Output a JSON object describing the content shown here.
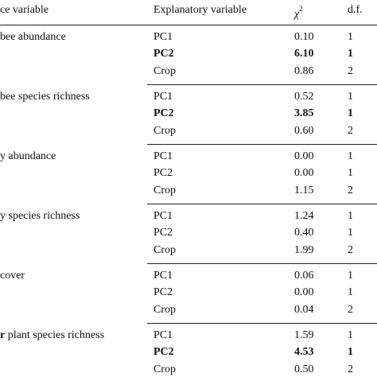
{
  "table": {
    "header": {
      "response": "ce variable",
      "explanatory": "Explanatory variable",
      "chi": "χ",
      "chi_sup": "2",
      "df": "d.f."
    },
    "groups": [
      {
        "response": [
          {
            "text": "bee abundance"
          }
        ],
        "rows": [
          {
            "variable": "PC1",
            "chi2": "0.10",
            "df": "1",
            "bold": false
          },
          {
            "variable": "PC2",
            "chi2": "6.10",
            "df": "1",
            "bold": true
          },
          {
            "variable": "Crop",
            "chi2": "0.86",
            "df": "2",
            "bold": false
          }
        ]
      },
      {
        "response": [
          {
            "text": "bee species richness"
          }
        ],
        "rows": [
          {
            "variable": "PC1",
            "chi2": "0.52",
            "df": "1",
            "bold": false
          },
          {
            "variable": "PC2",
            "chi2": "3.85",
            "df": "1",
            "bold": true
          },
          {
            "variable": "Crop",
            "chi2": "0.60",
            "df": "2",
            "bold": false
          }
        ]
      },
      {
        "response": [
          {
            "text": "y abundance"
          }
        ],
        "rows": [
          {
            "variable": "PC1",
            "chi2": "0.00",
            "df": "1",
            "bold": false
          },
          {
            "variable": "PC2",
            "chi2": "0.00",
            "df": "1",
            "bold": false
          },
          {
            "variable": "Crop",
            "chi2": "1.15",
            "df": "2",
            "bold": false
          }
        ]
      },
      {
        "response": [
          {
            "text": "y species richness"
          }
        ],
        "rows": [
          {
            "variable": "PC1",
            "chi2": "1.24",
            "df": "1",
            "bold": false
          },
          {
            "variable": "PC2",
            "chi2": "0.40",
            "df": "1",
            "bold": false
          },
          {
            "variable": "Crop",
            "chi2": "1.99",
            "df": "2",
            "bold": false
          }
        ]
      },
      {
        "response": [
          {
            "text": "cover"
          }
        ],
        "rows": [
          {
            "variable": "PC1",
            "chi2": "0.06",
            "df": "1",
            "bold": false
          },
          {
            "variable": "PC2",
            "chi2": "0.00",
            "df": "1",
            "bold": false
          },
          {
            "variable": "Crop",
            "chi2": "0.04",
            "df": "2",
            "bold": false
          }
        ]
      },
      {
        "response": [
          {
            "text": "r",
            "bold": true
          },
          {
            "text": " plant species richness"
          }
        ],
        "rows": [
          {
            "variable": "PC1",
            "chi2": "1.59",
            "df": "1",
            "bold": false
          },
          {
            "variable": "PC2",
            "chi2": "4.53",
            "df": "1",
            "bold": true
          },
          {
            "variable": "Crop",
            "chi2": "0.50",
            "df": "2",
            "bold": false
          }
        ]
      }
    ]
  }
}
